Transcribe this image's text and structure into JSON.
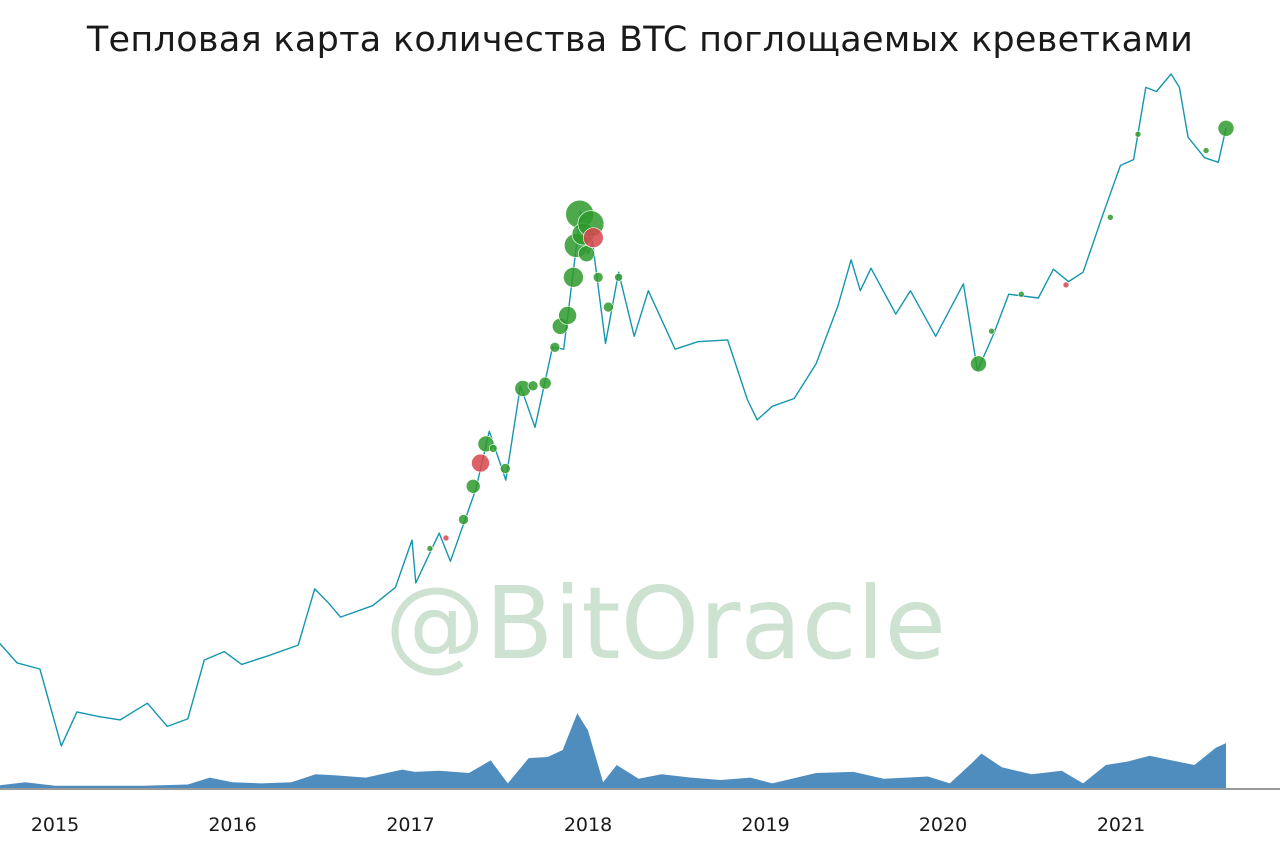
{
  "chart_data": {
    "type": "line",
    "title": "Тепловая карта количества BTC поглощаемых креветками",
    "watermark": "@BitOracle",
    "x_tick_labels": [
      "2015",
      "2016",
      "2017",
      "2018",
      "2019",
      "2020",
      "2021"
    ],
    "xlim": [
      "2014-09-01",
      "2021-10-01"
    ],
    "y_scale": "log",
    "y_axis_labels": "none",
    "grid": false,
    "legend": "none",
    "colors": {
      "price_line": "#1596ad",
      "volume_area": "#4f8dbf",
      "bubble_accumulation": "#2e9a2c",
      "bubble_distribution": "#d9454d",
      "watermark": "#6aa877"
    },
    "series": [
      {
        "type": "line",
        "points": [
          [
            "2014-09-01",
            480
          ],
          [
            "2014-10-15",
            390
          ],
          [
            "2014-12-01",
            370
          ],
          [
            "2015-01-14",
            190
          ],
          [
            "2015-02-15",
            255
          ],
          [
            "2015-04-01",
            245
          ],
          [
            "2015-05-15",
            238
          ],
          [
            "2015-07-10",
            275
          ],
          [
            "2015-08-20",
            225
          ],
          [
            "2015-10-01",
            240
          ],
          [
            "2015-11-04",
            400
          ],
          [
            "2015-12-15",
            430
          ],
          [
            "2016-01-20",
            385
          ],
          [
            "2016-03-15",
            415
          ],
          [
            "2016-05-15",
            455
          ],
          [
            "2016-06-18",
            740
          ],
          [
            "2016-07-15",
            660
          ],
          [
            "2016-08-10",
            580
          ],
          [
            "2016-10-15",
            640
          ],
          [
            "2016-12-01",
            750
          ],
          [
            "2017-01-04",
            1130
          ],
          [
            "2017-01-12",
            780
          ],
          [
            "2017-03-01",
            1200
          ],
          [
            "2017-03-24",
            940
          ],
          [
            "2017-05-15",
            1750
          ],
          [
            "2017-06-12",
            2900
          ],
          [
            "2017-07-16",
            1900
          ],
          [
            "2017-08-15",
            4300
          ],
          [
            "2017-09-14",
            3000
          ],
          [
            "2017-10-20",
            6000
          ],
          [
            "2017-11-12",
            5900
          ],
          [
            "2017-12-17",
            19500
          ],
          [
            "2018-01-01",
            13500
          ],
          [
            "2018-01-10",
            15000
          ],
          [
            "2018-02-06",
            6200
          ],
          [
            "2018-03-05",
            11500
          ],
          [
            "2018-04-06",
            6600
          ],
          [
            "2018-05-05",
            9800
          ],
          [
            "2018-06-29",
            5900
          ],
          [
            "2018-08-15",
            6300
          ],
          [
            "2018-10-15",
            6400
          ],
          [
            "2018-11-25",
            3800
          ],
          [
            "2018-12-15",
            3200
          ],
          [
            "2019-01-15",
            3600
          ],
          [
            "2019-03-01",
            3850
          ],
          [
            "2019-04-15",
            5200
          ],
          [
            "2019-05-30",
            8600
          ],
          [
            "2019-06-26",
            12800
          ],
          [
            "2019-07-15",
            9800
          ],
          [
            "2019-08-06",
            11900
          ],
          [
            "2019-09-26",
            8000
          ],
          [
            "2019-10-26",
            9800
          ],
          [
            "2019-12-17",
            6600
          ],
          [
            "2020-02-12",
            10400
          ],
          [
            "2020-03-12",
            4900
          ],
          [
            "2020-04-15",
            6800
          ],
          [
            "2020-05-15",
            9500
          ],
          [
            "2020-07-15",
            9200
          ],
          [
            "2020-08-15",
            11800
          ],
          [
            "2020-09-15",
            10600
          ],
          [
            "2020-10-15",
            11500
          ],
          [
            "2020-11-25",
            19000
          ],
          [
            "2020-12-31",
            29000
          ],
          [
            "2021-01-27",
            30500
          ],
          [
            "2021-02-21",
            57000
          ],
          [
            "2021-03-15",
            55000
          ],
          [
            "2021-04-14",
            64000
          ],
          [
            "2021-05-01",
            57000
          ],
          [
            "2021-05-19",
            37000
          ],
          [
            "2021-06-22",
            31000
          ],
          [
            "2021-07-20",
            29800
          ],
          [
            "2021-08-05",
            40000
          ]
        ]
      },
      {
        "type": "area",
        "scale": "relative (0-100)",
        "points": [
          [
            "2014-09-01",
            2
          ],
          [
            "2014-11-01",
            5
          ],
          [
            "2015-01-01",
            2
          ],
          [
            "2015-04-01",
            2
          ],
          [
            "2015-07-01",
            2
          ],
          [
            "2015-10-01",
            3
          ],
          [
            "2015-11-15",
            9
          ],
          [
            "2016-01-01",
            5
          ],
          [
            "2016-03-01",
            4
          ],
          [
            "2016-05-01",
            5
          ],
          [
            "2016-06-20",
            12
          ],
          [
            "2016-08-01",
            11
          ],
          [
            "2016-10-01",
            9
          ],
          [
            "2016-12-15",
            16
          ],
          [
            "2017-01-10",
            14
          ],
          [
            "2017-03-01",
            15
          ],
          [
            "2017-05-01",
            13
          ],
          [
            "2017-06-15",
            24
          ],
          [
            "2017-07-20",
            4
          ],
          [
            "2017-09-01",
            26
          ],
          [
            "2017-10-10",
            27
          ],
          [
            "2017-11-10",
            33
          ],
          [
            "2017-12-10",
            65
          ],
          [
            "2018-01-01",
            50
          ],
          [
            "2018-02-01",
            5
          ],
          [
            "2018-03-01",
            20
          ],
          [
            "2018-04-15",
            8
          ],
          [
            "2018-06-01",
            12
          ],
          [
            "2018-08-01",
            9
          ],
          [
            "2018-10-01",
            7
          ],
          [
            "2018-12-01",
            9
          ],
          [
            "2019-01-15",
            4
          ],
          [
            "2019-04-15",
            13
          ],
          [
            "2019-07-01",
            14
          ],
          [
            "2019-09-01",
            8
          ],
          [
            "2019-12-01",
            10
          ],
          [
            "2020-01-15",
            4
          ],
          [
            "2020-03-01",
            22
          ],
          [
            "2020-03-20",
            30
          ],
          [
            "2020-05-01",
            18
          ],
          [
            "2020-07-01",
            12
          ],
          [
            "2020-09-01",
            15
          ],
          [
            "2020-10-15",
            4
          ],
          [
            "2020-12-01",
            20
          ],
          [
            "2021-01-15",
            23
          ],
          [
            "2021-03-01",
            28
          ],
          [
            "2021-04-15",
            24
          ],
          [
            "2021-06-01",
            20
          ],
          [
            "2021-07-15",
            35
          ],
          [
            "2021-08-05",
            39
          ]
        ]
      },
      {
        "type": "scatter",
        "points": [
          [
            "2017-02-10",
            1050,
            3,
            "g"
          ],
          [
            "2017-03-15",
            1150,
            3,
            "r"
          ],
          [
            "2017-04-20",
            1350,
            5,
            "g"
          ],
          [
            "2017-05-10",
            1800,
            7,
            "g"
          ],
          [
            "2017-05-25",
            2200,
            9,
            "r"
          ],
          [
            "2017-06-05",
            2600,
            8,
            "g"
          ],
          [
            "2017-06-20",
            2500,
            4,
            "g"
          ],
          [
            "2017-07-15",
            2100,
            5,
            "g"
          ],
          [
            "2017-08-20",
            4200,
            8,
            "g"
          ],
          [
            "2017-09-10",
            4300,
            5,
            "g"
          ],
          [
            "2017-10-05",
            4400,
            6,
            "g"
          ],
          [
            "2017-10-25",
            6000,
            5,
            "g"
          ],
          [
            "2017-11-05",
            7200,
            8,
            "g"
          ],
          [
            "2017-11-20",
            7900,
            9,
            "g"
          ],
          [
            "2017-12-02",
            11000,
            10,
            "g"
          ],
          [
            "2017-12-08",
            14500,
            12,
            "g"
          ],
          [
            "2017-12-15",
            19000,
            14,
            "g"
          ],
          [
            "2017-12-22",
            16000,
            11,
            "g"
          ],
          [
            "2017-12-29",
            13500,
            8,
            "g"
          ],
          [
            "2018-01-07",
            17500,
            13,
            "g"
          ],
          [
            "2018-01-12",
            15500,
            10,
            "r"
          ],
          [
            "2018-01-22",
            11000,
            5,
            "g"
          ],
          [
            "2018-02-12",
            8500,
            5,
            "g"
          ],
          [
            "2018-03-05",
            11000,
            4,
            "g"
          ],
          [
            "2020-03-14",
            5200,
            8,
            "g"
          ],
          [
            "2020-04-10",
            6900,
            3,
            "g"
          ],
          [
            "2020-06-10",
            9500,
            3,
            "g"
          ],
          [
            "2020-09-10",
            10300,
            3,
            "r"
          ],
          [
            "2020-12-10",
            18500,
            3,
            "g"
          ],
          [
            "2021-02-05",
            38000,
            3,
            "g"
          ],
          [
            "2021-06-25",
            33000,
            3,
            "g"
          ],
          [
            "2021-08-05",
            40000,
            8,
            "g"
          ]
        ]
      }
    ]
  }
}
